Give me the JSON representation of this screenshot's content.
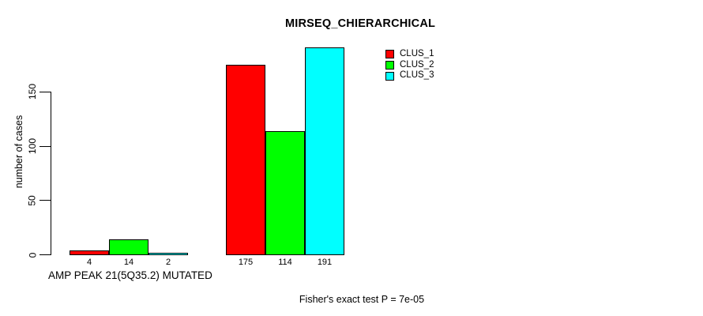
{
  "chart_data": {
    "type": "bar",
    "title": "MIRSEQ_CHIERARCHICAL",
    "ylabel": "number of cases",
    "ylim": [
      0,
      150
    ],
    "yticks": [
      0,
      50,
      100,
      150
    ],
    "grid": false,
    "legend_position": "top-right",
    "series": [
      {
        "name": "CLUS_1",
        "color": "#FF0000"
      },
      {
        "name": "CLUS_2",
        "color": "#00FF00"
      },
      {
        "name": "CLUS_3",
        "color": "#00FFFF"
      }
    ],
    "groups": [
      {
        "label": "AMP PEAK 21(5Q35.2) MUTATED",
        "values": [
          4,
          14,
          2
        ]
      },
      {
        "label": "",
        "values": [
          175,
          114,
          191
        ]
      }
    ],
    "footnote": "Fisher's exact test P = 7e-05"
  }
}
